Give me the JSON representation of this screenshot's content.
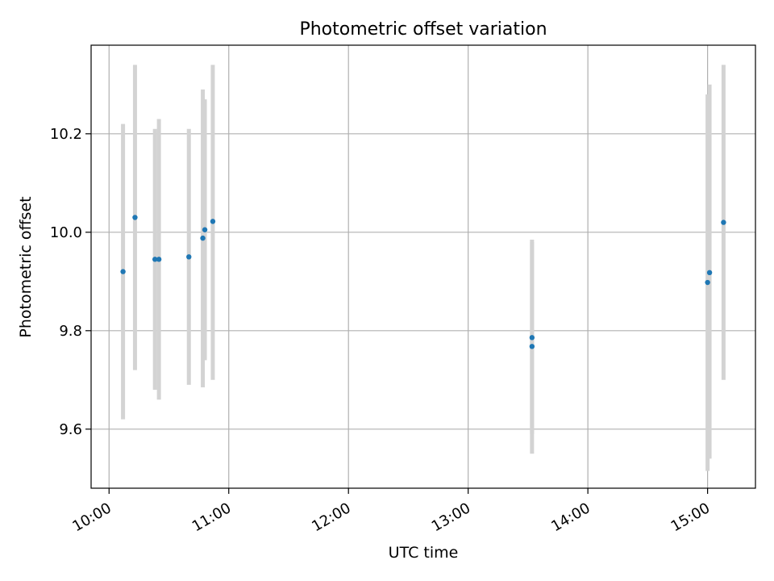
{
  "chart_data": {
    "type": "scatter",
    "title": "Photometric offset variation",
    "xlabel": "UTC time",
    "ylabel": "Photometric offset",
    "x_ticks": [
      "10:00",
      "11:00",
      "12:00",
      "13:00",
      "14:00",
      "15:00"
    ],
    "y_ticks": [
      "9.6",
      "9.8",
      "10.0",
      "10.2"
    ],
    "xlim": [
      "09:51",
      "15:24"
    ],
    "ylim": [
      9.48,
      10.38
    ],
    "grid": true,
    "colors": {
      "points": "#1f77b4",
      "errorbars": "#d3d3d3",
      "grid": "#b0b0b0"
    },
    "series": [
      {
        "points": [
          {
            "x": "10:07",
            "y": 9.92,
            "err_low": 9.62,
            "err_high": 10.22
          },
          {
            "x": "10:13",
            "y": 10.03,
            "err_low": 9.72,
            "err_high": 10.34
          },
          {
            "x": "10:23",
            "y": 9.945,
            "err_low": 9.68,
            "err_high": 10.21
          },
          {
            "x": "10:25",
            "y": 9.945,
            "err_low": 9.66,
            "err_high": 10.23
          },
          {
            "x": "10:40",
            "y": 9.95,
            "err_low": 9.69,
            "err_high": 10.21
          },
          {
            "x": "10:47",
            "y": 9.988,
            "err_low": 9.685,
            "err_high": 10.29
          },
          {
            "x": "10:48",
            "y": 10.005,
            "err_low": 9.74,
            "err_high": 10.27
          },
          {
            "x": "10:52",
            "y": 10.022,
            "err_low": 9.7,
            "err_high": 10.34
          },
          {
            "x": "13:32",
            "y": 9.786,
            "err_low": 9.59,
            "err_high": 9.98
          },
          {
            "x": "13:32",
            "y": 9.768,
            "err_low": 9.55,
            "err_high": 9.985
          },
          {
            "x": "15:00",
            "y": 9.898,
            "err_low": 9.515,
            "err_high": 10.28
          },
          {
            "x": "15:01",
            "y": 9.918,
            "err_low": 9.54,
            "err_high": 10.3
          },
          {
            "x": "15:08",
            "y": 10.02,
            "err_low": 9.7,
            "err_high": 10.34
          }
        ]
      }
    ]
  }
}
